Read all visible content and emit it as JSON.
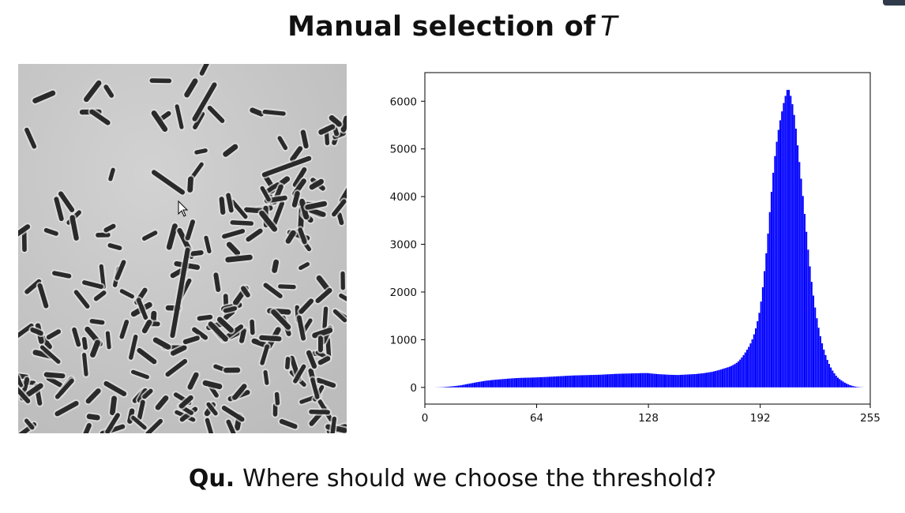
{
  "slide": {
    "title_text": "Manual selection of",
    "title_math": "T",
    "question_prefix": "Qu.",
    "question_text": "Where should we choose the threshold?"
  },
  "image": {
    "subject": "phase-contrast micrograph of rod-shaped bacteria",
    "background_gray": "#c8c8c8",
    "object_color": "#2a2a2a"
  },
  "icons": {
    "cursor": "arrow-cursor-icon"
  },
  "chart_data": {
    "type": "bar",
    "title": "",
    "xlabel": "",
    "ylabel": "",
    "color": "#0000ff",
    "xlim": [
      0,
      255
    ],
    "ylim": [
      -350,
      6600
    ],
    "xticks": [
      0,
      64,
      128,
      192,
      255
    ],
    "yticks": [
      0,
      1000,
      2000,
      3000,
      4000,
      5000,
      6000
    ],
    "x": [
      5,
      10,
      15,
      20,
      25,
      30,
      35,
      40,
      45,
      50,
      55,
      60,
      64,
      70,
      75,
      80,
      85,
      90,
      95,
      100,
      105,
      110,
      115,
      120,
      125,
      128,
      130,
      135,
      140,
      145,
      150,
      155,
      160,
      165,
      170,
      175,
      178,
      180,
      182,
      184,
      186,
      188,
      190,
      192,
      194,
      196,
      198,
      200,
      202,
      204,
      206,
      208,
      210,
      212,
      214,
      216,
      218,
      220,
      222,
      224,
      226,
      228,
      230,
      232,
      234,
      236,
      238,
      240,
      242,
      244,
      246,
      248,
      250,
      252
    ],
    "values": [
      0,
      5,
      20,
      40,
      75,
      110,
      140,
      160,
      175,
      190,
      200,
      205,
      210,
      220,
      230,
      240,
      250,
      255,
      260,
      265,
      275,
      285,
      290,
      295,
      300,
      300,
      290,
      275,
      265,
      260,
      270,
      280,
      300,
      330,
      380,
      440,
      500,
      560,
      650,
      760,
      880,
      1050,
      1300,
      1650,
      2250,
      3000,
      3900,
      4700,
      5300,
      5700,
      6050,
      6300,
      6050,
      5600,
      4900,
      4200,
      3450,
      2700,
      2050,
      1550,
      1150,
      850,
      620,
      450,
      320,
      220,
      160,
      110,
      70,
      40,
      20,
      8,
      3,
      0
    ]
  }
}
